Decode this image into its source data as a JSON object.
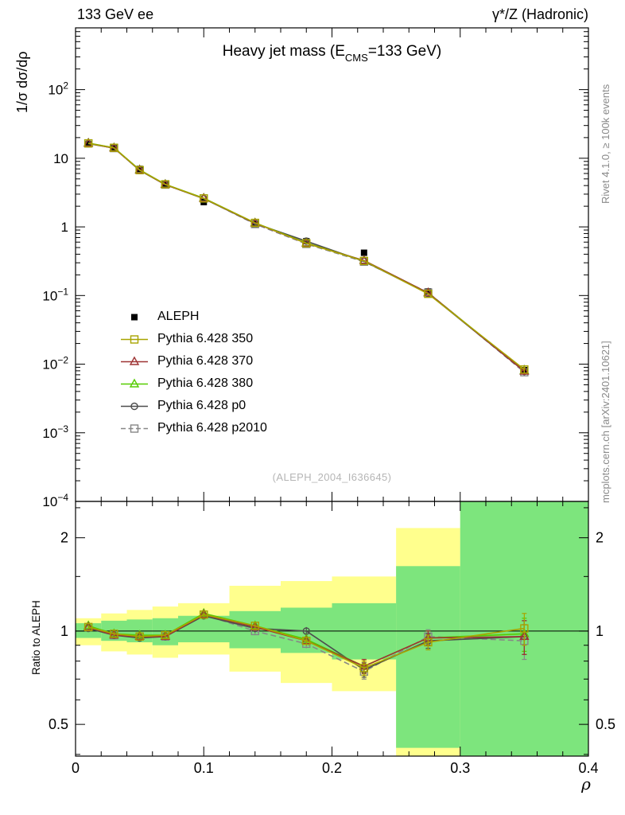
{
  "header": {
    "left": "133 GeV ee",
    "right": "γ*/Z (Hadronic)"
  },
  "title": {
    "prefix": "Heavy jet mass (E",
    "subscript": "CMS",
    "suffix": "=133 GeV)"
  },
  "watermark": "(ALEPH_2004_I636645)",
  "side_notes": {
    "rivet": "Rivet 4.1.0, ≥ 100k events",
    "mcplots": "mcplots.cern.ch [arXiv:2401.10621]"
  },
  "axes": {
    "y_main_label": "1/σ  dσ/dρ",
    "y_ratio_label": "Ratio to ALEPH",
    "x_axis_label": "ρ"
  },
  "chart_data": {
    "type": "line",
    "title": "Heavy jet mass (E_CMS = 133 GeV)",
    "xlabel": "ρ",
    "ylabel": "1/σ dσ/dρ",
    "ratio_label": "Ratio to ALEPH",
    "xlim": [
      0,
      0.4
    ],
    "x_major_ticks": [
      0,
      0.1,
      0.2,
      0.3,
      0.4
    ],
    "x_tick_labels": [
      "0",
      "0.1",
      "0.2",
      "0.3",
      "0.4"
    ],
    "x_minor_step": 0.02,
    "y_log_range": [
      -4,
      2.9
    ],
    "y_labeled_decades": [
      2,
      1,
      0,
      -1,
      -2,
      -3,
      -4
    ],
    "ratio_range": [
      0.395,
      2.62
    ],
    "ratio_major_ticks": [
      2,
      1,
      0.5
    ],
    "ratio_tick_labels": [
      "2",
      "1",
      "0.5"
    ],
    "ratio_minor_ticks": [
      0.4,
      0.6,
      0.7,
      0.8,
      0.9,
      1.5,
      2.5
    ],
    "x": [
      0.01,
      0.03,
      0.05,
      0.07,
      0.1,
      0.14,
      0.18,
      0.225,
      0.275,
      0.35
    ],
    "reference": {
      "name": "ALEPH",
      "color": "#000000",
      "marker": "filled-square",
      "line": "none",
      "values": [
        16.0,
        14.5,
        7.0,
        4.3,
        2.3,
        1.1,
        0.62,
        0.42,
        0.115,
        0.0082
      ],
      "errors": [
        0.5,
        0.4,
        0.2,
        0.12,
        0.07,
        0.04,
        0.025,
        0.02,
        0.008,
        0.0015
      ]
    },
    "ratio_err": [
      0.015,
      0.015,
      0.015,
      0.02,
      0.02,
      0.03,
      0.03,
      0.04,
      0.05,
      0.12
    ],
    "series": [
      {
        "name": "Pythia 6.428 350",
        "color": "#a8a400",
        "marker": "open-square",
        "line": "solid",
        "ratio": [
          1.03,
          0.98,
          0.96,
          0.97,
          1.13,
          1.04,
          0.93,
          0.76,
          0.92,
          1.02
        ]
      },
      {
        "name": "Pythia 6.428 370",
        "color": "#9e3434",
        "marker": "open-triangle",
        "line": "solid",
        "ratio": [
          1.03,
          0.97,
          0.96,
          0.96,
          1.13,
          1.03,
          0.93,
          0.77,
          0.95,
          0.96
        ]
      },
      {
        "name": "Pythia 6.428 380",
        "color": "#55cc00",
        "marker": "open-triangle",
        "line": "solid",
        "ratio": [
          1.04,
          0.98,
          0.97,
          0.97,
          1.14,
          1.04,
          0.94,
          0.77,
          0.95,
          0.98
        ]
      },
      {
        "name": "Pythia 6.428 p0",
        "color": "#4d4d4d",
        "marker": "open-circle",
        "line": "solid",
        "ratio": [
          1.02,
          0.97,
          0.95,
          0.96,
          1.12,
          1.02,
          1.0,
          0.75,
          0.93,
          0.96
        ]
      },
      {
        "name": "Pythia 6.428 p2010",
        "color": "#878787",
        "marker": "open-square",
        "line": "dashed",
        "ratio": [
          1.03,
          0.97,
          0.96,
          0.96,
          1.13,
          1.0,
          0.91,
          0.74,
          0.96,
          0.93
        ]
      }
    ],
    "band_colors": {
      "outer": "#ffff8d",
      "inner": "#7de57d"
    },
    "bands": [
      {
        "x0": 0.0,
        "x1": 0.02,
        "yellow": [
          0.9,
          1.1
        ],
        "green": [
          0.95,
          1.06
        ]
      },
      {
        "x0": 0.02,
        "x1": 0.04,
        "yellow": [
          0.86,
          1.14
        ],
        "green": [
          0.93,
          1.08
        ]
      },
      {
        "x0": 0.04,
        "x1": 0.06,
        "yellow": [
          0.84,
          1.17
        ],
        "green": [
          0.92,
          1.09
        ]
      },
      {
        "x0": 0.06,
        "x1": 0.08,
        "yellow": [
          0.82,
          1.2
        ],
        "green": [
          0.9,
          1.1
        ]
      },
      {
        "x0": 0.08,
        "x1": 0.12,
        "yellow": [
          0.84,
          1.23
        ],
        "green": [
          0.92,
          1.12
        ]
      },
      {
        "x0": 0.12,
        "x1": 0.16,
        "yellow": [
          0.74,
          1.4
        ],
        "green": [
          0.88,
          1.16
        ]
      },
      {
        "x0": 0.16,
        "x1": 0.2,
        "yellow": [
          0.68,
          1.45
        ],
        "green": [
          0.85,
          1.19
        ]
      },
      {
        "x0": 0.2,
        "x1": 0.25,
        "yellow": [
          0.64,
          1.5
        ],
        "green": [
          0.81,
          1.23
        ]
      },
      {
        "x0": 0.25,
        "x1": 0.3,
        "yellow": [
          0.36,
          2.15
        ],
        "green": [
          0.42,
          1.62
        ]
      },
      {
        "x0": 0.3,
        "x1": 0.4,
        "yellow": [
          0.36,
          2.7
        ],
        "green": [
          0.36,
          2.7
        ]
      }
    ]
  }
}
